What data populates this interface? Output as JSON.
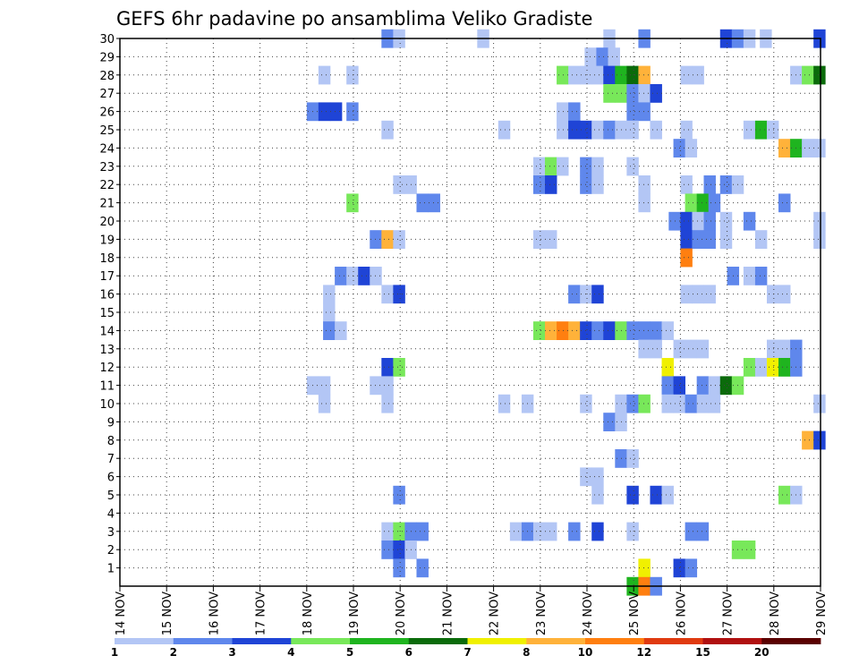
{
  "chart_data": {
    "type": "heatmap",
    "title": "GEFS 6hr padavine po ansamblima Veliko Gradiste",
    "xlabel": "",
    "ylabel": "",
    "x_ticks": [
      "14 NOV",
      "15 NOV",
      "16 NOV",
      "17 NOV",
      "18 NOV",
      "19 NOV",
      "20 NOV",
      "21 NOV",
      "22 NOV",
      "23 NOV",
      "24 NOV",
      "25 NOV",
      "26 NOV",
      "27 NOV",
      "28 NOV",
      "29 NOV"
    ],
    "y_ticks": [
      "1",
      "2",
      "3",
      "4",
      "5",
      "6",
      "7",
      "8",
      "9",
      "10",
      "11",
      "12",
      "13",
      "14",
      "15",
      "16",
      "17",
      "18",
      "19",
      "20",
      "21",
      "22",
      "23",
      "24",
      "25",
      "26",
      "27",
      "28",
      "29",
      "30"
    ],
    "x_range_days": [
      0,
      15
    ],
    "y_range": [
      0,
      30
    ],
    "grid": true,
    "legend": {
      "placement": "bottom",
      "labels": [
        "1",
        "2",
        "3",
        "4",
        "5",
        "6",
        "7",
        "8",
        "10",
        "12",
        "15",
        "20"
      ],
      "colors": [
        "#b3c6f5",
        "#5f87ec",
        "#1f44d6",
        "#78e85a",
        "#1fb41f",
        "#0b6b0b",
        "#f0f000",
        "#ffb23a",
        "#ff7f10",
        "#e03a10",
        "#b01010",
        "#5a0000"
      ]
    },
    "cells": [
      [
        30,
        5.6,
        1
      ],
      [
        30,
        5.85,
        0
      ],
      [
        30,
        7.65,
        0
      ],
      [
        30,
        10.35,
        0
      ],
      [
        30,
        11.1,
        1
      ],
      [
        30,
        12.85,
        2
      ],
      [
        30,
        13.1,
        1
      ],
      [
        30,
        13.35,
        0
      ],
      [
        30,
        13.7,
        0
      ],
      [
        30,
        14.85,
        2
      ],
      [
        29,
        9.95,
        0
      ],
      [
        29,
        10.2,
        1
      ],
      [
        29,
        10.45,
        0
      ],
      [
        28,
        4.25,
        0
      ],
      [
        28,
        4.85,
        0
      ],
      [
        28,
        9.35,
        3
      ],
      [
        28,
        9.6,
        0
      ],
      [
        28,
        9.85,
        0
      ],
      [
        28,
        10.1,
        0
      ],
      [
        28,
        10.35,
        2
      ],
      [
        28,
        10.6,
        4
      ],
      [
        28,
        10.85,
        5
      ],
      [
        28,
        11.1,
        7
      ],
      [
        28,
        12.0,
        0
      ],
      [
        28,
        12.25,
        0
      ],
      [
        28,
        14.35,
        0
      ],
      [
        28,
        14.6,
        3
      ],
      [
        28,
        14.85,
        5
      ],
      [
        27,
        10.35,
        3
      ],
      [
        27,
        10.6,
        3
      ],
      [
        27,
        10.85,
        1
      ],
      [
        27,
        11.1,
        0
      ],
      [
        27,
        11.35,
        2
      ],
      [
        26,
        4.0,
        1
      ],
      [
        26,
        4.25,
        2
      ],
      [
        26,
        4.5,
        2
      ],
      [
        26,
        4.85,
        1
      ],
      [
        26,
        9.35,
        0
      ],
      [
        26,
        9.6,
        1
      ],
      [
        26,
        10.85,
        1
      ],
      [
        26,
        11.1,
        1
      ],
      [
        25,
        5.6,
        0
      ],
      [
        25,
        8.1,
        0
      ],
      [
        25,
        9.35,
        0
      ],
      [
        25,
        9.6,
        2
      ],
      [
        25,
        9.85,
        2
      ],
      [
        25,
        10.1,
        0
      ],
      [
        25,
        10.35,
        1
      ],
      [
        25,
        10.6,
        0
      ],
      [
        25,
        10.85,
        0
      ],
      [
        25,
        11.35,
        0
      ],
      [
        25,
        12.0,
        0
      ],
      [
        25,
        13.35,
        0
      ],
      [
        25,
        13.6,
        4
      ],
      [
        25,
        13.85,
        0
      ],
      [
        24,
        11.85,
        1
      ],
      [
        24,
        12.1,
        0
      ],
      [
        24,
        14.1,
        7
      ],
      [
        24,
        14.35,
        4
      ],
      [
        24,
        14.6,
        0
      ],
      [
        24,
        14.85,
        0
      ],
      [
        23,
        8.85,
        0
      ],
      [
        23,
        9.1,
        3
      ],
      [
        23,
        9.35,
        0
      ],
      [
        23,
        9.85,
        1
      ],
      [
        23,
        10.1,
        0
      ],
      [
        23,
        10.85,
        0
      ],
      [
        22,
        5.85,
        0
      ],
      [
        22,
        6.1,
        0
      ],
      [
        22,
        8.85,
        1
      ],
      [
        22,
        9.1,
        2
      ],
      [
        22,
        9.85,
        1
      ],
      [
        22,
        10.1,
        0
      ],
      [
        22,
        11.1,
        0
      ],
      [
        22,
        12.0,
        0
      ],
      [
        22,
        12.5,
        1
      ],
      [
        22,
        12.85,
        1
      ],
      [
        22,
        13.1,
        0
      ],
      [
        21,
        4.85,
        3
      ],
      [
        21,
        6.35,
        1
      ],
      [
        21,
        6.6,
        1
      ],
      [
        21,
        11.1,
        0
      ],
      [
        21,
        12.1,
        3
      ],
      [
        21,
        12.35,
        4
      ],
      [
        21,
        12.6,
        1
      ],
      [
        21,
        14.1,
        1
      ],
      [
        20,
        11.75,
        1
      ],
      [
        20,
        12.0,
        2
      ],
      [
        20,
        12.25,
        0
      ],
      [
        20,
        12.5,
        1
      ],
      [
        20,
        12.85,
        0
      ],
      [
        20,
        13.35,
        1
      ],
      [
        20,
        14.85,
        0
      ],
      [
        19,
        5.35,
        1
      ],
      [
        19,
        5.6,
        7
      ],
      [
        19,
        5.85,
        0
      ],
      [
        19,
        8.85,
        0
      ],
      [
        19,
        9.1,
        0
      ],
      [
        19,
        12.0,
        2
      ],
      [
        19,
        12.25,
        1
      ],
      [
        19,
        12.5,
        1
      ],
      [
        19,
        12.85,
        0
      ],
      [
        19,
        13.6,
        0
      ],
      [
        19,
        14.85,
        0
      ],
      [
        18,
        12.0,
        8
      ],
      [
        17,
        4.6,
        1
      ],
      [
        17,
        4.85,
        0
      ],
      [
        17,
        5.1,
        2
      ],
      [
        17,
        5.35,
        0
      ],
      [
        17,
        13.0,
        1
      ],
      [
        17,
        13.35,
        0
      ],
      [
        17,
        13.6,
        1
      ],
      [
        16,
        4.35,
        0
      ],
      [
        16,
        5.6,
        0
      ],
      [
        16,
        5.85,
        2
      ],
      [
        16,
        9.6,
        1
      ],
      [
        16,
        9.85,
        0
      ],
      [
        16,
        10.1,
        2
      ],
      [
        16,
        12.0,
        0
      ],
      [
        16,
        12.25,
        0
      ],
      [
        16,
        12.5,
        0
      ],
      [
        16,
        13.85,
        0
      ],
      [
        16,
        14.1,
        0
      ],
      [
        15,
        4.35,
        0
      ],
      [
        14,
        4.35,
        1
      ],
      [
        14,
        4.6,
        0
      ],
      [
        14,
        8.85,
        3
      ],
      [
        14,
        9.1,
        7
      ],
      [
        14,
        9.35,
        8
      ],
      [
        14,
        9.6,
        7
      ],
      [
        14,
        9.85,
        2
      ],
      [
        14,
        10.1,
        1
      ],
      [
        14,
        10.35,
        2
      ],
      [
        14,
        10.6,
        3
      ],
      [
        14,
        10.85,
        1
      ],
      [
        14,
        11.1,
        1
      ],
      [
        14,
        11.35,
        1
      ],
      [
        14,
        11.6,
        0
      ],
      [
        13,
        11.1,
        0
      ],
      [
        13,
        11.35,
        0
      ],
      [
        13,
        11.85,
        0
      ],
      [
        13,
        12.1,
        0
      ],
      [
        13,
        12.35,
        0
      ],
      [
        13,
        13.85,
        0
      ],
      [
        13,
        14.1,
        0
      ],
      [
        13,
        14.35,
        1
      ],
      [
        12,
        5.6,
        2
      ],
      [
        12,
        5.85,
        3
      ],
      [
        12,
        11.6,
        6
      ],
      [
        12,
        13.35,
        3
      ],
      [
        12,
        13.6,
        0
      ],
      [
        12,
        13.85,
        6
      ],
      [
        12,
        14.1,
        4
      ],
      [
        12,
        14.35,
        1
      ],
      [
        11,
        4.0,
        0
      ],
      [
        11,
        4.25,
        0
      ],
      [
        11,
        5.35,
        0
      ],
      [
        11,
        5.6,
        0
      ],
      [
        11,
        11.6,
        1
      ],
      [
        11,
        11.85,
        2
      ],
      [
        11,
        12.35,
        1
      ],
      [
        11,
        12.6,
        0
      ],
      [
        11,
        12.85,
        5
      ],
      [
        11,
        13.1,
        3
      ],
      [
        10,
        4.25,
        0
      ],
      [
        10,
        5.6,
        0
      ],
      [
        10,
        8.1,
        0
      ],
      [
        10,
        8.6,
        0
      ],
      [
        10,
        9.85,
        0
      ],
      [
        10,
        10.6,
        0
      ],
      [
        10,
        10.85,
        1
      ],
      [
        10,
        11.1,
        3
      ],
      [
        10,
        11.6,
        0
      ],
      [
        10,
        11.85,
        0
      ],
      [
        10,
        12.1,
        1
      ],
      [
        10,
        12.35,
        0
      ],
      [
        10,
        12.6,
        0
      ],
      [
        10,
        14.85,
        0
      ],
      [
        9,
        10.35,
        1
      ],
      [
        9,
        10.6,
        0
      ],
      [
        8,
        14.6,
        7
      ],
      [
        8,
        14.85,
        2
      ],
      [
        7,
        10.6,
        1
      ],
      [
        7,
        10.85,
        0
      ],
      [
        6,
        9.85,
        0
      ],
      [
        6,
        10.1,
        0
      ],
      [
        5,
        5.85,
        1
      ],
      [
        5,
        10.1,
        0
      ],
      [
        5,
        10.85,
        2
      ],
      [
        5,
        11.35,
        2
      ],
      [
        5,
        11.6,
        0
      ],
      [
        5,
        14.1,
        3
      ],
      [
        5,
        14.35,
        0
      ],
      [
        3,
        5.6,
        0
      ],
      [
        3,
        5.85,
        3
      ],
      [
        3,
        6.1,
        1
      ],
      [
        3,
        6.35,
        1
      ],
      [
        3,
        8.35,
        0
      ],
      [
        3,
        8.6,
        1
      ],
      [
        3,
        8.85,
        0
      ],
      [
        3,
        9.1,
        0
      ],
      [
        3,
        9.6,
        1
      ],
      [
        3,
        10.1,
        2
      ],
      [
        3,
        10.85,
        0
      ],
      [
        3,
        12.1,
        1
      ],
      [
        3,
        12.35,
        1
      ],
      [
        2,
        5.6,
        1
      ],
      [
        2,
        5.85,
        2
      ],
      [
        2,
        6.1,
        0
      ],
      [
        2,
        13.1,
        3
      ],
      [
        2,
        13.35,
        3
      ],
      [
        1,
        5.85,
        1
      ],
      [
        1,
        6.35,
        1
      ],
      [
        1,
        11.1,
        6
      ],
      [
        1,
        11.85,
        2
      ],
      [
        1,
        12.1,
        1
      ],
      [
        0,
        10.85,
        4
      ],
      [
        0,
        11.1,
        8
      ],
      [
        0,
        11.35,
        1
      ]
    ]
  }
}
